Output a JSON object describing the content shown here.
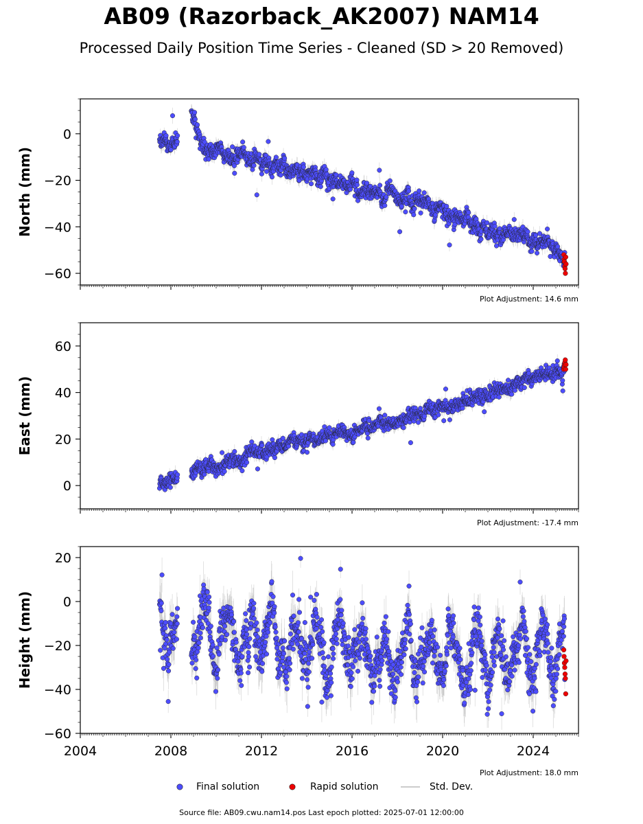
{
  "title": "AB09 (Razorback_AK2007) NAM14",
  "subtitle": "Processed Daily Position Time Series - Cleaned (SD > 20 Removed)",
  "legend": {
    "final_label": "Final solution",
    "rapid_label": "Rapid solution",
    "std_label": "Std. Dev."
  },
  "source_note": "Source file: AB09.cwu.nam14.pos  Last epoch plotted: 2025-07-01 12:00:00",
  "colors": {
    "final": "#4d4dff",
    "rapid": "#ee0000",
    "std": "#bbbbbb",
    "edge": "#222222"
  },
  "chart_data": [
    {
      "type": "scatter",
      "ylabel": "North (mm)",
      "adjustment_label": "Plot Adjustment: 14.6 mm",
      "xlim": [
        2004.0,
        2026.0
      ],
      "ylim": [
        -65,
        15
      ],
      "yticks": [
        0,
        -20,
        -40,
        -60
      ],
      "xticks": [
        2004,
        2008,
        2012,
        2016,
        2020,
        2024
      ],
      "data_start": 2007.5,
      "data_end": 2025.4,
      "gap": [
        2008.3,
        2008.9
      ],
      "trend": [
        [
          2007.5,
          -2
        ],
        [
          2008.2,
          -4
        ],
        [
          2008.95,
          8
        ],
        [
          2009.5,
          -7
        ],
        [
          2011.0,
          -10
        ],
        [
          2012.0,
          -11
        ],
        [
          2013.0,
          -14
        ],
        [
          2014.0,
          -17
        ],
        [
          2015.0,
          -19
        ],
        [
          2016.0,
          -22
        ],
        [
          2017.0,
          -25
        ],
        [
          2018.0,
          -27
        ],
        [
          2019.0,
          -29
        ],
        [
          2020.0,
          -33
        ],
        [
          2021.0,
          -37
        ],
        [
          2022.0,
          -41
        ],
        [
          2023.0,
          -44
        ],
        [
          2024.0,
          -46
        ],
        [
          2025.0,
          -49
        ],
        [
          2025.4,
          -53
        ]
      ],
      "noise": 2.5,
      "rapid": {
        "x_start": 2025.35,
        "x_end": 2025.45,
        "values": [
          -52,
          -54,
          -55,
          -57,
          -58,
          -60,
          -53,
          -56
        ]
      }
    },
    {
      "type": "scatter",
      "ylabel": "East (mm)",
      "adjustment_label": "Plot Adjustment: -17.4 mm",
      "xlim": [
        2004.0,
        2026.0
      ],
      "ylim": [
        -10,
        70
      ],
      "yticks": [
        0,
        20,
        40,
        60
      ],
      "xticks": [
        2004,
        2008,
        2012,
        2016,
        2020,
        2024
      ],
      "data_start": 2007.5,
      "data_end": 2025.4,
      "gap": [
        2008.3,
        2008.9
      ],
      "trend": [
        [
          2007.5,
          -1
        ],
        [
          2008.2,
          4
        ],
        [
          2008.95,
          6
        ],
        [
          2010.0,
          8
        ],
        [
          2011.0,
          11
        ],
        [
          2012.0,
          14
        ],
        [
          2013.0,
          17
        ],
        [
          2014.0,
          20
        ],
        [
          2015.0,
          21
        ],
        [
          2016.0,
          23
        ],
        [
          2017.0,
          26
        ],
        [
          2018.0,
          28
        ],
        [
          2019.0,
          31
        ],
        [
          2020.0,
          34
        ],
        [
          2021.0,
          37
        ],
        [
          2022.0,
          40
        ],
        [
          2023.0,
          43
        ],
        [
          2024.0,
          46
        ],
        [
          2025.0,
          49
        ],
        [
          2025.4,
          51
        ]
      ],
      "noise": 2.2,
      "rapid": {
        "x_start": 2025.35,
        "x_end": 2025.45,
        "values": [
          50,
          51,
          52,
          53,
          54,
          50,
          52
        ]
      }
    },
    {
      "type": "scatter",
      "ylabel": "Height (mm)",
      "adjustment_label": "Plot Adjustment: 18.0 mm",
      "xlim": [
        2004.0,
        2026.0
      ],
      "ylim": [
        -60,
        25
      ],
      "yticks": [
        20,
        0,
        -20,
        -40,
        -60
      ],
      "xticks": [
        2004,
        2008,
        2012,
        2016,
        2020,
        2024
      ],
      "data_start": 2007.5,
      "data_end": 2025.4,
      "gap": [
        2008.3,
        2008.9
      ],
      "trend": [
        [
          2007.5,
          -15
        ],
        [
          2010.0,
          -16
        ],
        [
          2013.0,
          -18
        ],
        [
          2016.0,
          -22
        ],
        [
          2019.0,
          -24
        ],
        [
          2022.0,
          -26
        ],
        [
          2025.4,
          -24
        ]
      ],
      "seasonal_amp": 10,
      "noise": 8,
      "rapid": {
        "x_start": 2025.35,
        "x_end": 2025.45,
        "values": [
          -22,
          -25,
          -28,
          -30,
          -33,
          -35,
          -42,
          -27
        ]
      }
    }
  ]
}
